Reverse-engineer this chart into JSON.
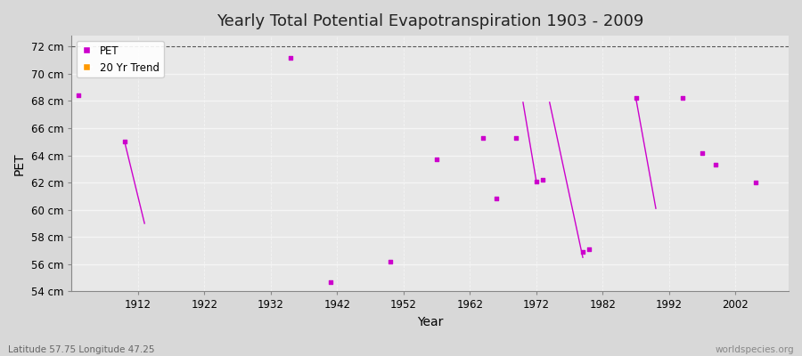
{
  "title": "Yearly Total Potential Evapotranspiration 1903 - 2009",
  "xlabel": "Year",
  "ylabel": "PET",
  "footnote_left": "Latitude 57.75 Longitude 47.25",
  "footnote_right": "worldspecies.org",
  "ylim": [
    54,
    72.8
  ],
  "xlim": [
    1902,
    2010
  ],
  "ytick_labels": [
    "54 cm",
    "56 cm",
    "58 cm",
    "60 cm",
    "62 cm",
    "64 cm",
    "66 cm",
    "68 cm",
    "70 cm",
    "72 cm"
  ],
  "ytick_values": [
    54,
    56,
    58,
    60,
    62,
    64,
    66,
    68,
    70,
    72
  ],
  "xtick_values": [
    1912,
    1922,
    1932,
    1942,
    1952,
    1962,
    1972,
    1982,
    1992,
    2002
  ],
  "pet_color": "#cc00cc",
  "trend_color": "#ff9900",
  "background_color": "#d8d8d8",
  "plot_bg_color": "#e8e8e8",
  "grid_color": "#f5f5f5",
  "dashed_line_y": 72,
  "pet_data": [
    [
      1903,
      68.4
    ],
    [
      1910,
      65.0
    ],
    [
      1935,
      71.2
    ],
    [
      1941,
      54.7
    ],
    [
      1950,
      56.2
    ],
    [
      1957,
      63.7
    ],
    [
      1964,
      65.3
    ],
    [
      1966,
      60.8
    ],
    [
      1969,
      65.3
    ],
    [
      1972,
      62.1
    ],
    [
      1973,
      62.2
    ],
    [
      1979,
      56.9
    ],
    [
      1980,
      57.1
    ],
    [
      1987,
      68.2
    ],
    [
      1994,
      68.2
    ],
    [
      1997,
      64.2
    ],
    [
      1999,
      63.3
    ],
    [
      2005,
      62.0
    ]
  ],
  "trend_segments": [
    [
      [
        1910,
        65.0
      ],
      [
        1913,
        59.0
      ]
    ],
    [
      [
        1970,
        67.9
      ],
      [
        1972,
        62.1
      ]
    ],
    [
      [
        1974,
        67.9
      ],
      [
        1979,
        56.5
      ]
    ],
    [
      [
        1987,
        68.2
      ],
      [
        1990,
        60.1
      ]
    ]
  ]
}
